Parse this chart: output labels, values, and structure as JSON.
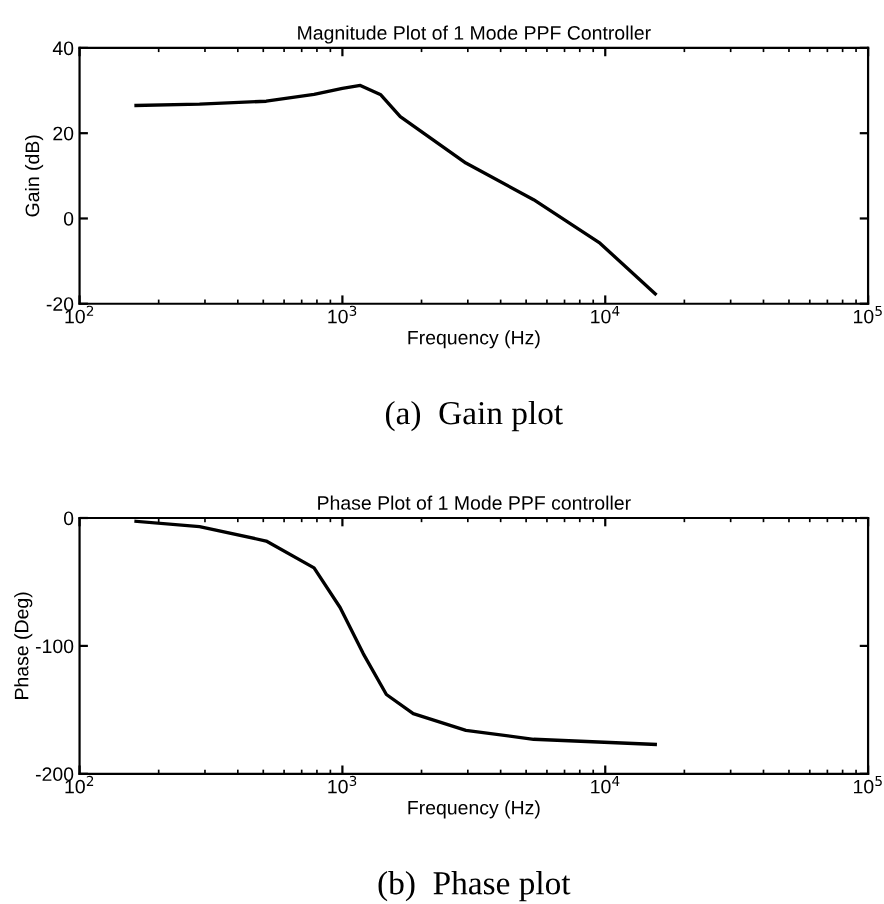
{
  "chart_data": [
    {
      "type": "line",
      "title": "Magnitude Plot of 1 Mode PPF Controller",
      "xlabel": "Frequency (Hz)",
      "ylabel": "Gain (dB)",
      "log": "x",
      "grid": false,
      "legend": false,
      "xlim": [
        100,
        100000
      ],
      "xticks": [
        {
          "value": 100,
          "label": "10$^{2}$"
        },
        {
          "value": 1000,
          "label": "10$^{3}$"
        },
        {
          "value": 10000,
          "label": "10$^{4}$"
        },
        {
          "value": 100000,
          "label": "10$^{5}$"
        }
      ],
      "ylim": [
        -20,
        40
      ],
      "yticks": [
        -20,
        0,
        20,
        40
      ],
      "annotations": [
        "(a)  Gain plot"
      ],
      "series": [
        {
          "color": "#000000",
          "x": [
            164,
            286,
            513,
            780,
            1000,
            1170,
            1400,
            1660,
            2950,
            5340,
            9550,
            15500
          ],
          "values": [
            26.5,
            26.8,
            27.5,
            29.1,
            30.5,
            31.2,
            29,
            23.9,
            13,
            4.4,
            -5.8,
            -17.7
          ]
        }
      ]
    },
    {
      "type": "line",
      "title": "Phase Plot of 1 Mode PPF controller",
      "xlabel": "Frequency (Hz)",
      "ylabel": "Phase (Deg)",
      "log": "x",
      "grid": false,
      "legend": false,
      "xlim": [
        100,
        100000
      ],
      "xticks": [
        {
          "value": 100,
          "label": "10$^{2}$"
        },
        {
          "value": 1000,
          "label": "10$^{3}$"
        },
        {
          "value": 10000,
          "label": "10$^{4}$"
        },
        {
          "value": 100000,
          "label": "10$^{5}$"
        }
      ],
      "ylim": [
        -200,
        0
      ],
      "yticks": [
        -200,
        -100,
        0
      ],
      "annotations": [
        "(b)  Phase plot"
      ],
      "series": [
        {
          "color": "#000000",
          "x": [
            164,
            286,
            513,
            780,
            980,
            1200,
            1470,
            1860,
            2950,
            5340,
            15500
          ],
          "values": [
            -2.6,
            -6.8,
            -18,
            -39,
            -70,
            -106,
            -138,
            -153,
            -166,
            -173,
            -177
          ]
        }
      ]
    }
  ]
}
